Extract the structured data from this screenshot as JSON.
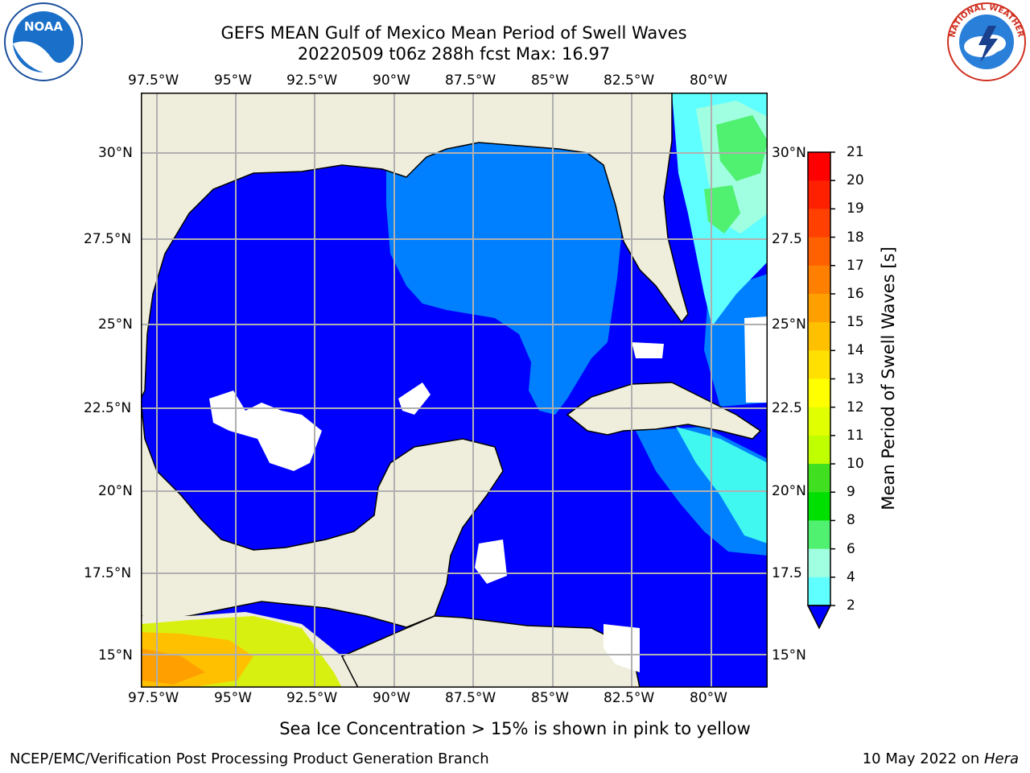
{
  "title_line1": "GEFS MEAN Gulf of Mexico Mean Period of Swell Waves",
  "title_line2": "20220509 t06z 288h fcst   Max: 16.97",
  "lon_labels": [
    "97.5°W",
    "95°W",
    "92.5°W",
    "90°W",
    "87.5°W",
    "85°W",
    "82.5°W",
    "80°W"
  ],
  "lat_labels_left": [
    "30°N",
    "27.5°N",
    "25°N",
    "22.5°N",
    "20°N",
    "17.5°N",
    "15°N"
  ],
  "lat_labels_right": [
    "30°N",
    "27.5",
    "25°N",
    "22.5",
    "20°N",
    "17.5",
    "15°N"
  ],
  "colorbar": {
    "label": "Mean Period of Swell Waves [s]",
    "ticks": [
      "21",
      "20",
      "19",
      "18",
      "17",
      "16",
      "15",
      "14",
      "13",
      "12",
      "11",
      "10",
      "9",
      "8",
      "6",
      "4",
      "2"
    ],
    "colors": [
      "#ff0000",
      "#ff2000",
      "#ff4000",
      "#ff6000",
      "#ff8000",
      "#ffa000",
      "#ffc000",
      "#ffe000",
      "#ffff00",
      "#e0ff00",
      "#c0ff00",
      "#40e020",
      "#00e000",
      "#50f070",
      "#a0ffe0",
      "#60ffff",
      "#00f0ff",
      "#00c8ff",
      "#0080ff",
      "#0000ff"
    ]
  },
  "note": "Sea Ice Concentration > 15% is shown in pink to yellow",
  "footer_left": "NCEP/EMC/Verification Post Processing Product Generation Branch",
  "footer_right_prefix": "10 May 2022 on ",
  "footer_right_host": "Hera",
  "logo_left_text": "NOAA",
  "logo_right_text": "NATIONAL WEATHER SERVICE"
}
